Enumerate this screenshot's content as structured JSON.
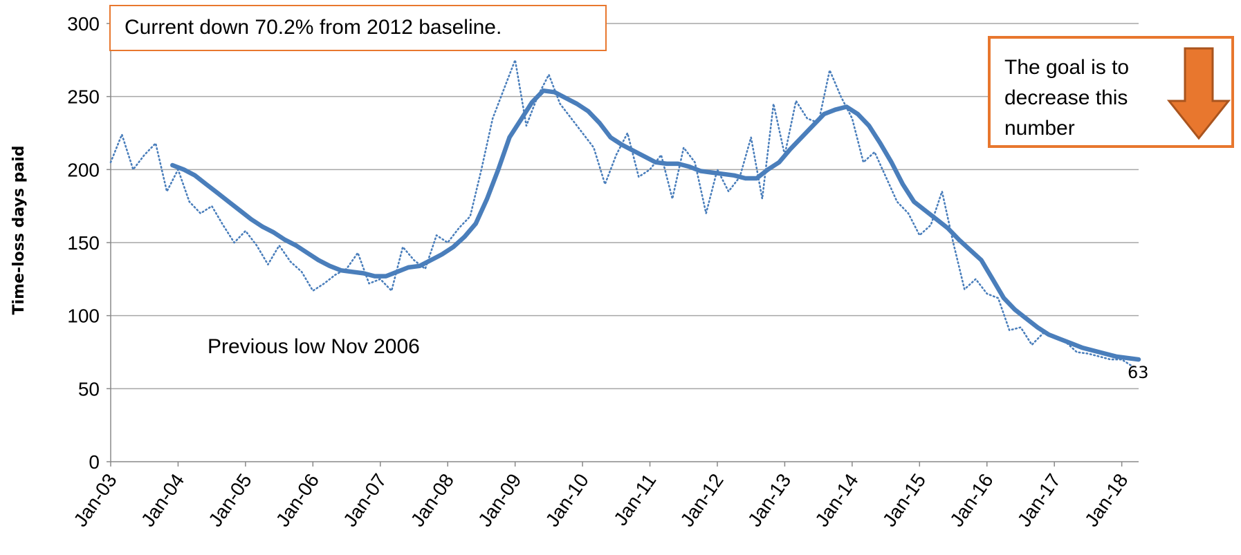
{
  "chart_data": {
    "type": "line",
    "title": "",
    "xlabel": "",
    "ylabel": "Time-loss days paid",
    "ylim": [
      0,
      300
    ],
    "yticks": [
      0,
      50,
      100,
      150,
      200,
      250,
      300
    ],
    "xticks": [
      "Jan-03",
      "Jan-04",
      "Jan-05",
      "Jan-06",
      "Jan-07",
      "Jan-08",
      "Jan-09",
      "Jan-10",
      "Jan-11",
      "Jan-12",
      "Jan-13",
      "Jan-14",
      "Jan-15",
      "Jan-16",
      "Jan-17",
      "Jan-18"
    ],
    "grid": "horizontal",
    "colors": {
      "series": "#4A7EBB",
      "accent": "#E8772E",
      "grid": "#A6A6A6"
    },
    "series": [
      {
        "style": "dotted",
        "x": [
          "2003-01",
          "2003-03",
          "2003-05",
          "2003-07",
          "2003-09",
          "2003-11",
          "2004-01",
          "2004-03",
          "2004-05",
          "2004-07",
          "2004-09",
          "2004-11",
          "2005-01",
          "2005-03",
          "2005-05",
          "2005-07",
          "2005-09",
          "2005-11",
          "2006-01",
          "2006-03",
          "2006-05",
          "2006-07",
          "2006-09",
          "2006-11",
          "2007-01",
          "2007-03",
          "2007-05",
          "2007-07",
          "2007-09",
          "2007-11",
          "2008-01",
          "2008-03",
          "2008-05",
          "2008-07",
          "2008-09",
          "2008-11",
          "2009-01",
          "2009-03",
          "2009-05",
          "2009-07",
          "2009-09",
          "2009-11",
          "2010-01",
          "2010-03",
          "2010-05",
          "2010-07",
          "2010-09",
          "2010-11",
          "2011-01",
          "2011-03",
          "2011-05",
          "2011-07",
          "2011-09",
          "2011-11",
          "2012-01",
          "2012-03",
          "2012-05",
          "2012-07",
          "2012-09",
          "2012-11",
          "2013-01",
          "2013-03",
          "2013-05",
          "2013-07",
          "2013-09",
          "2013-11",
          "2014-01",
          "2014-03",
          "2014-05",
          "2014-07",
          "2014-09",
          "2014-11",
          "2015-01",
          "2015-03",
          "2015-05",
          "2015-07",
          "2015-09",
          "2015-11",
          "2016-01",
          "2016-03",
          "2016-05",
          "2016-07",
          "2016-09",
          "2016-11",
          "2017-01",
          "2017-03",
          "2017-05",
          "2017-07",
          "2017-09",
          "2017-11",
          "2018-01",
          "2018-03"
        ],
        "values": [
          205,
          224,
          200,
          210,
          218,
          185,
          200,
          178,
          170,
          175,
          162,
          150,
          158,
          148,
          135,
          148,
          137,
          130,
          117,
          122,
          128,
          132,
          143,
          122,
          125,
          117,
          147,
          138,
          132,
          155,
          150,
          160,
          168,
          200,
          235,
          255,
          275,
          230,
          250,
          265,
          245,
          235,
          225,
          215,
          190,
          210,
          225,
          195,
          200,
          210,
          180,
          215,
          205,
          170,
          200,
          185,
          195,
          222,
          180,
          245,
          210,
          247,
          235,
          232,
          268,
          250,
          235,
          205,
          212,
          195,
          178,
          170,
          155,
          162,
          185,
          150,
          118,
          125,
          115,
          112,
          90,
          92,
          80,
          88,
          86,
          82,
          75,
          74,
          72,
          70,
          70,
          65
        ]
      },
      {
        "style": "solid",
        "x": [
          "2003-12",
          "2004-02",
          "2004-04",
          "2004-06",
          "2004-08",
          "2004-10",
          "2004-12",
          "2005-02",
          "2005-04",
          "2005-06",
          "2005-08",
          "2005-10",
          "2005-12",
          "2006-02",
          "2006-04",
          "2006-06",
          "2006-08",
          "2006-10",
          "2006-12",
          "2007-02",
          "2007-04",
          "2007-06",
          "2007-08",
          "2007-10",
          "2007-12",
          "2008-02",
          "2008-04",
          "2008-06",
          "2008-08",
          "2008-10",
          "2008-12",
          "2009-02",
          "2009-04",
          "2009-06",
          "2009-08",
          "2009-10",
          "2009-12",
          "2010-02",
          "2010-04",
          "2010-06",
          "2010-08",
          "2010-10",
          "2010-12",
          "2011-02",
          "2011-04",
          "2011-06",
          "2011-08",
          "2011-10",
          "2011-12",
          "2012-02",
          "2012-04",
          "2012-06",
          "2012-08",
          "2012-10",
          "2012-12",
          "2013-02",
          "2013-04",
          "2013-06",
          "2013-08",
          "2013-10",
          "2013-12",
          "2014-02",
          "2014-04",
          "2014-06",
          "2014-08",
          "2014-10",
          "2014-12",
          "2015-02",
          "2015-04",
          "2015-06",
          "2015-08",
          "2015-10",
          "2015-12",
          "2016-02",
          "2016-04",
          "2016-06",
          "2016-08",
          "2016-10",
          "2016-12",
          "2017-02",
          "2017-04",
          "2017-06",
          "2017-08",
          "2017-10",
          "2017-12",
          "2018-02",
          "2018-04"
        ],
        "values": [
          203,
          200,
          196,
          190,
          184,
          178,
          172,
          166,
          161,
          157,
          152,
          148,
          143,
          138,
          134,
          131,
          130,
          129,
          127,
          127,
          130,
          133,
          134,
          138,
          142,
          147,
          154,
          163,
          180,
          200,
          222,
          234,
          246,
          254,
          253,
          249,
          245,
          240,
          232,
          222,
          217,
          213,
          209,
          205,
          204,
          204,
          202,
          199,
          198,
          197,
          196,
          194,
          194,
          200,
          205,
          214,
          222,
          230,
          238,
          241,
          243,
          238,
          230,
          218,
          205,
          190,
          178,
          172,
          166,
          160,
          152,
          145,
          138,
          125,
          112,
          104,
          98,
          92,
          87,
          84,
          81,
          78,
          76,
          74,
          72,
          71,
          70
        ]
      }
    ],
    "annotations": [
      {
        "text": "Current down 70.2% from 2012 baseline."
      },
      {
        "text": "Previous low Nov 2006"
      },
      {
        "text": "The goal is to decrease this number"
      },
      {
        "text": "63"
      }
    ]
  },
  "callouts": {
    "baseline": "Current down 70.2% from 2012 baseline.",
    "previous_low": "Previous low Nov 2006",
    "goal": "The goal is to decrease this number",
    "end_value": "63"
  }
}
